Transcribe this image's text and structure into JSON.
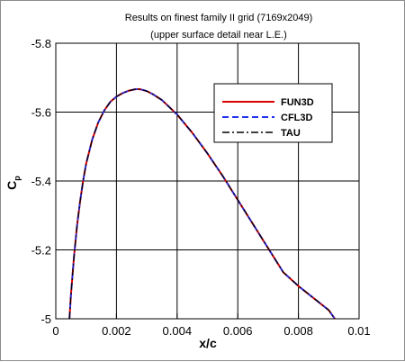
{
  "chart_data": {
    "type": "line",
    "title": "Results on finest family II grid (7169x2049)",
    "subtitle": "(upper surface detail near L.E.)",
    "xlabel": "x/c",
    "ylabel": "Cp",
    "ylabel_main": "C",
    "ylabel_sub": "p",
    "xlim": [
      0,
      0.01
    ],
    "ylim": [
      -5.8,
      -5.0
    ],
    "y_inverted": true,
    "grid": true,
    "legend_position": "top-right",
    "x_ticks": [
      {
        "value": 0,
        "label": "0"
      },
      {
        "value": 0.002,
        "label": "0.002"
      },
      {
        "value": 0.004,
        "label": "0.004"
      },
      {
        "value": 0.006,
        "label": "0.006"
      },
      {
        "value": 0.008,
        "label": "0.008"
      },
      {
        "value": 0.01,
        "label": "0.01"
      }
    ],
    "y_ticks": [
      {
        "value": -5.8,
        "label": "-5.8"
      },
      {
        "value": -5.6,
        "label": "-5.6"
      },
      {
        "value": -5.4,
        "label": "-5.4"
      },
      {
        "value": -5.2,
        "label": "-5.2"
      },
      {
        "value": -5.0,
        "label": "-5"
      }
    ],
    "x": [
      0.00045,
      0.0005,
      0.0006,
      0.0007,
      0.0008,
      0.0009,
      0.001,
      0.0012,
      0.0014,
      0.0016,
      0.0018,
      0.002,
      0.0022,
      0.0024,
      0.0026,
      0.0027,
      0.0028,
      0.003,
      0.0032,
      0.0035,
      0.004,
      0.0045,
      0.005,
      0.0055,
      0.006,
      0.0065,
      0.007,
      0.0075,
      0.008,
      0.0085,
      0.009,
      0.0092
    ],
    "series": [
      {
        "name": "FUN3D",
        "color": "#e00000",
        "dash": "solid",
        "values": [
          -5.0,
          -5.07,
          -5.18,
          -5.27,
          -5.34,
          -5.4,
          -5.45,
          -5.52,
          -5.57,
          -5.605,
          -5.63,
          -5.645,
          -5.655,
          -5.662,
          -5.666,
          -5.667,
          -5.666,
          -5.661,
          -5.652,
          -5.635,
          -5.593,
          -5.54,
          -5.48,
          -5.415,
          -5.345,
          -5.275,
          -5.205,
          -5.135,
          -5.095,
          -5.06,
          -5.025,
          -5.0
        ]
      },
      {
        "name": "CFL3D",
        "color": "#2233ee",
        "dash": "dashed",
        "values": [
          -5.0,
          -5.07,
          -5.18,
          -5.27,
          -5.34,
          -5.4,
          -5.45,
          -5.52,
          -5.57,
          -5.605,
          -5.63,
          -5.645,
          -5.655,
          -5.662,
          -5.666,
          -5.667,
          -5.666,
          -5.661,
          -5.652,
          -5.635,
          -5.593,
          -5.54,
          -5.48,
          -5.415,
          -5.345,
          -5.275,
          -5.205,
          -5.135,
          -5.095,
          -5.06,
          -5.025,
          -5.0
        ]
      },
      {
        "name": "TAU",
        "color": "#000000",
        "dash": "dashdot",
        "values": [
          -5.0,
          -5.07,
          -5.18,
          -5.27,
          -5.34,
          -5.4,
          -5.45,
          -5.52,
          -5.57,
          -5.605,
          -5.63,
          -5.645,
          -5.655,
          -5.662,
          -5.666,
          -5.667,
          -5.666,
          -5.661,
          -5.652,
          -5.635,
          -5.593,
          -5.54,
          -5.48,
          -5.415,
          -5.345,
          -5.275,
          -5.205,
          -5.135,
          -5.095,
          -5.06,
          -5.025,
          -5.0
        ]
      }
    ]
  }
}
